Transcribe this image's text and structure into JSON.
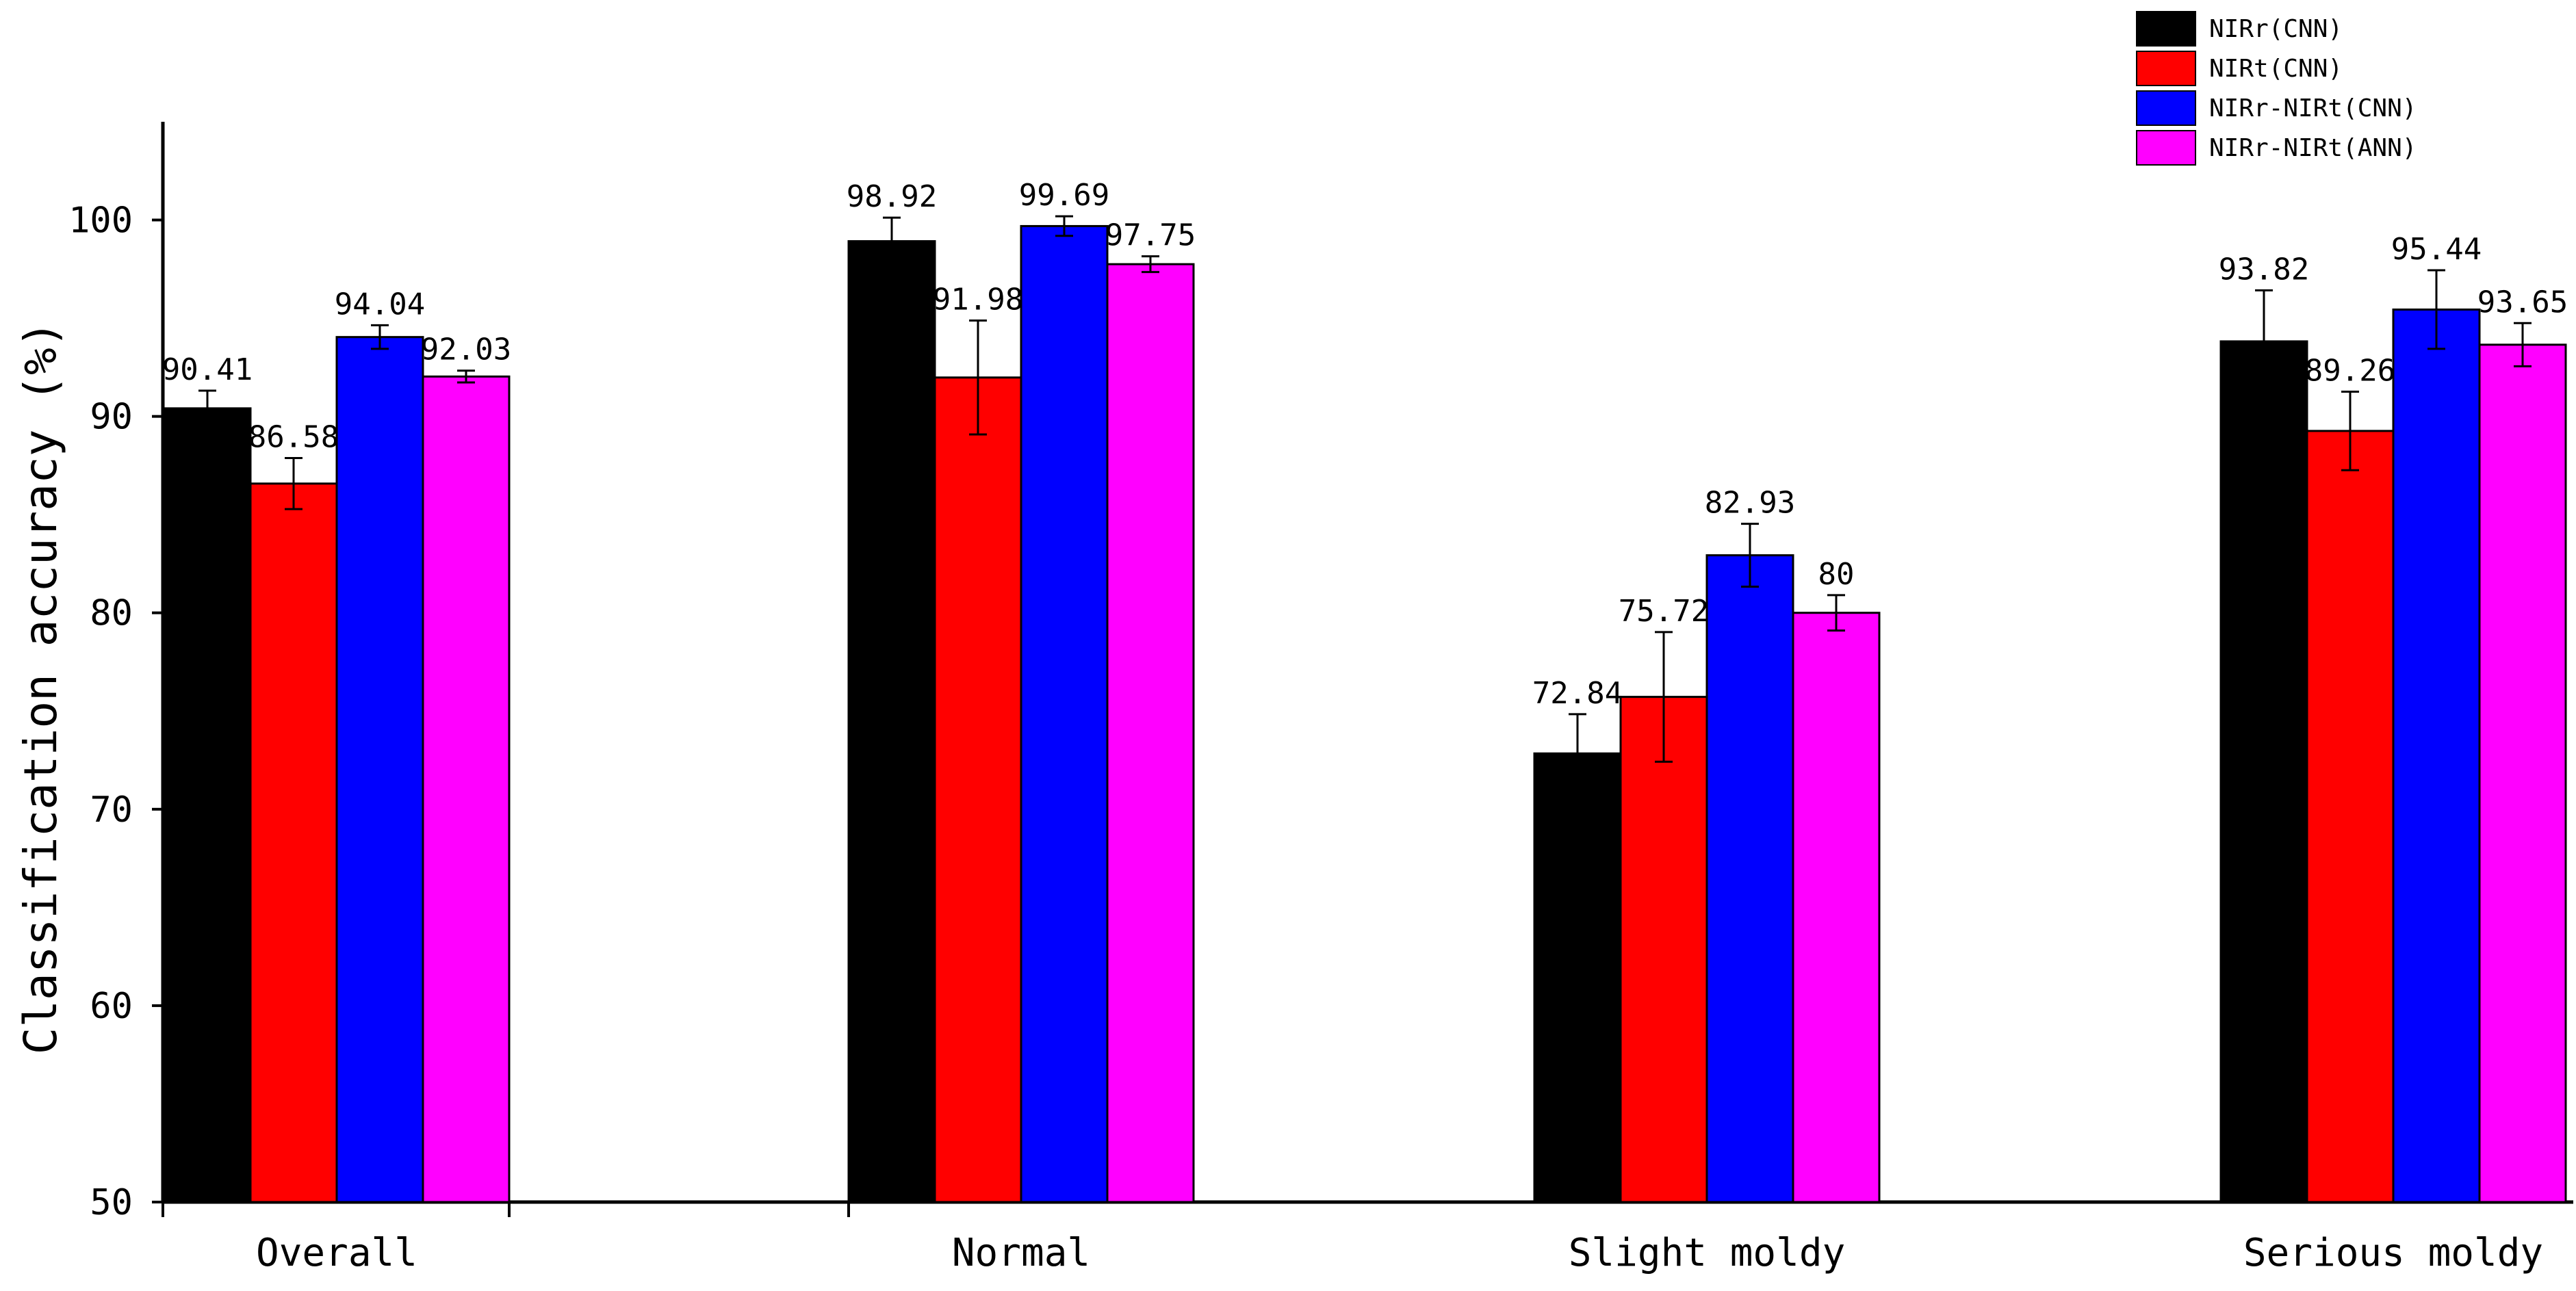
{
  "chart_data": {
    "type": "bar",
    "ylabel": "Classification accuracy (%)",
    "ylim": [
      50,
      105
    ],
    "yticks": [
      50,
      60,
      70,
      80,
      90,
      100
    ],
    "grid": false,
    "legend_position": "top-right",
    "categories": [
      "Overall",
      "Normal",
      "Slight moldy",
      "Serious moldy"
    ],
    "series": [
      {
        "name": "NIRr(CNN)",
        "color": "#000000",
        "values": [
          90.41,
          98.92,
          72.84,
          93.82
        ],
        "labels": [
          "90.41",
          "98.92",
          "72.84",
          "93.82"
        ],
        "errors": [
          0.9,
          1.2,
          2.0,
          2.6
        ]
      },
      {
        "name": "NIRt(CNN)",
        "color": "#ff0000",
        "values": [
          86.58,
          91.98,
          75.72,
          89.26
        ],
        "labels": [
          "86.58",
          "91.98",
          "75.72",
          "89.26"
        ],
        "errors": [
          1.3,
          2.9,
          3.3,
          2.0
        ]
      },
      {
        "name": "NIRr-NIRt(CNN)",
        "color": "#0000ff",
        "values": [
          94.04,
          99.69,
          82.93,
          95.44
        ],
        "labels": [
          "94.04",
          "99.69",
          "82.93",
          "95.44"
        ],
        "errors": [
          0.6,
          0.5,
          1.6,
          2.0
        ]
      },
      {
        "name": "NIRr-NIRt(ANN)",
        "color": "#ff00ff",
        "values": [
          92.03,
          97.75,
          80,
          93.65
        ],
        "labels": [
          "92.03",
          "97.75",
          "80",
          "93.65"
        ],
        "errors": [
          0.3,
          0.4,
          0.9,
          1.1
        ]
      }
    ]
  }
}
